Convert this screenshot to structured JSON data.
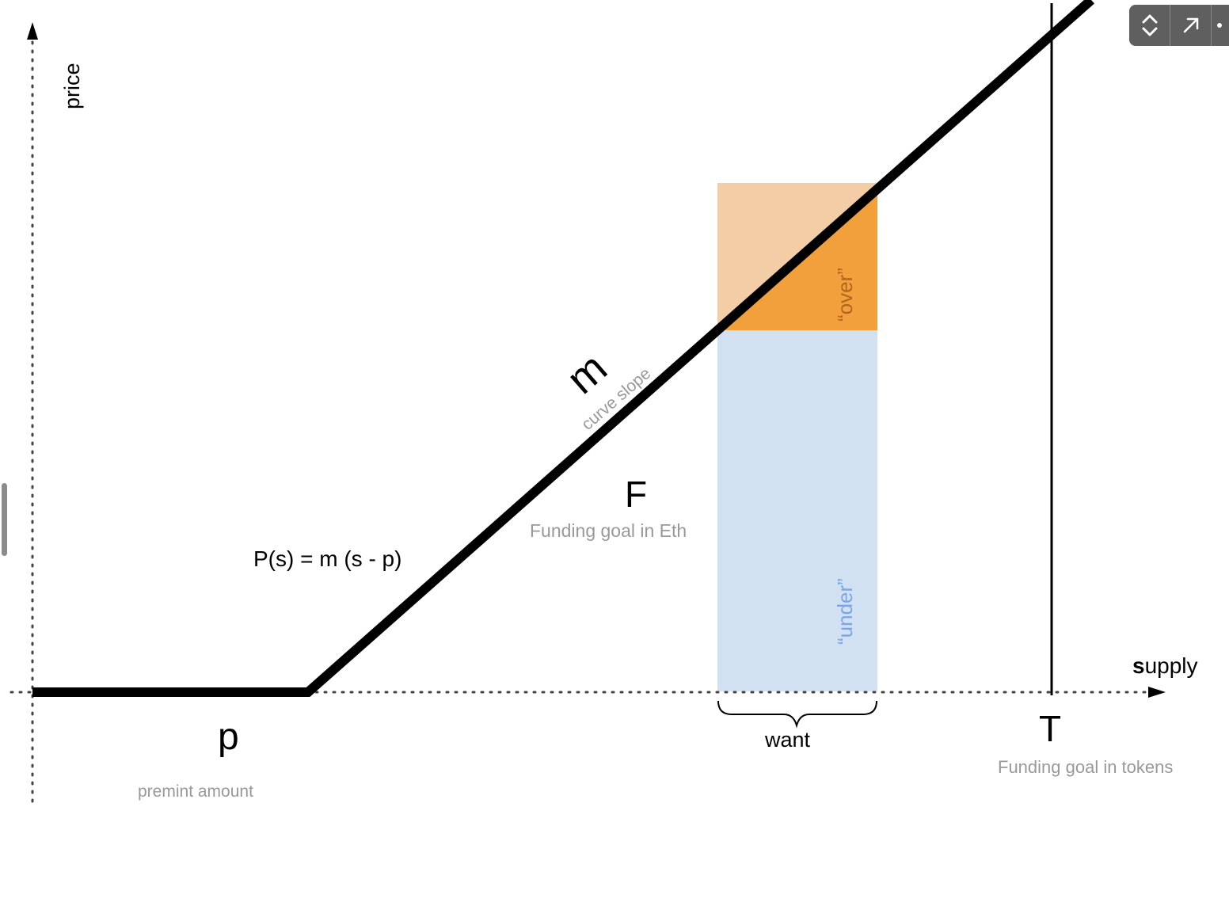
{
  "labels": {
    "price_axis": "price",
    "supply_axis_bold": "s",
    "supply_axis_rest": "upply",
    "m_symbol": "m",
    "m_caption": "curve slope",
    "f_symbol": "F",
    "f_caption": "Funding goal in Eth",
    "formula": "P(s) = m (s - p)",
    "p_symbol": "p",
    "p_caption": "premint amount",
    "t_symbol": "T",
    "t_caption": "Funding goal in tokens",
    "over_label": "“over”",
    "under_label": "“under”",
    "want_label": "want"
  },
  "colors": {
    "curve": "#000000",
    "over_light": "#f2cda6",
    "over_dark": "#f2a03c",
    "under_fill": "#d2e1f2",
    "under_text": "#7aa6e8",
    "over_text": "#b0651f",
    "caption_gray": "#999999",
    "toolbar_bg": "#5f5f5f"
  },
  "toolbar": {
    "buttons": [
      "expand-collapse-icon",
      "open-external-icon",
      "more-options-icon"
    ]
  }
}
